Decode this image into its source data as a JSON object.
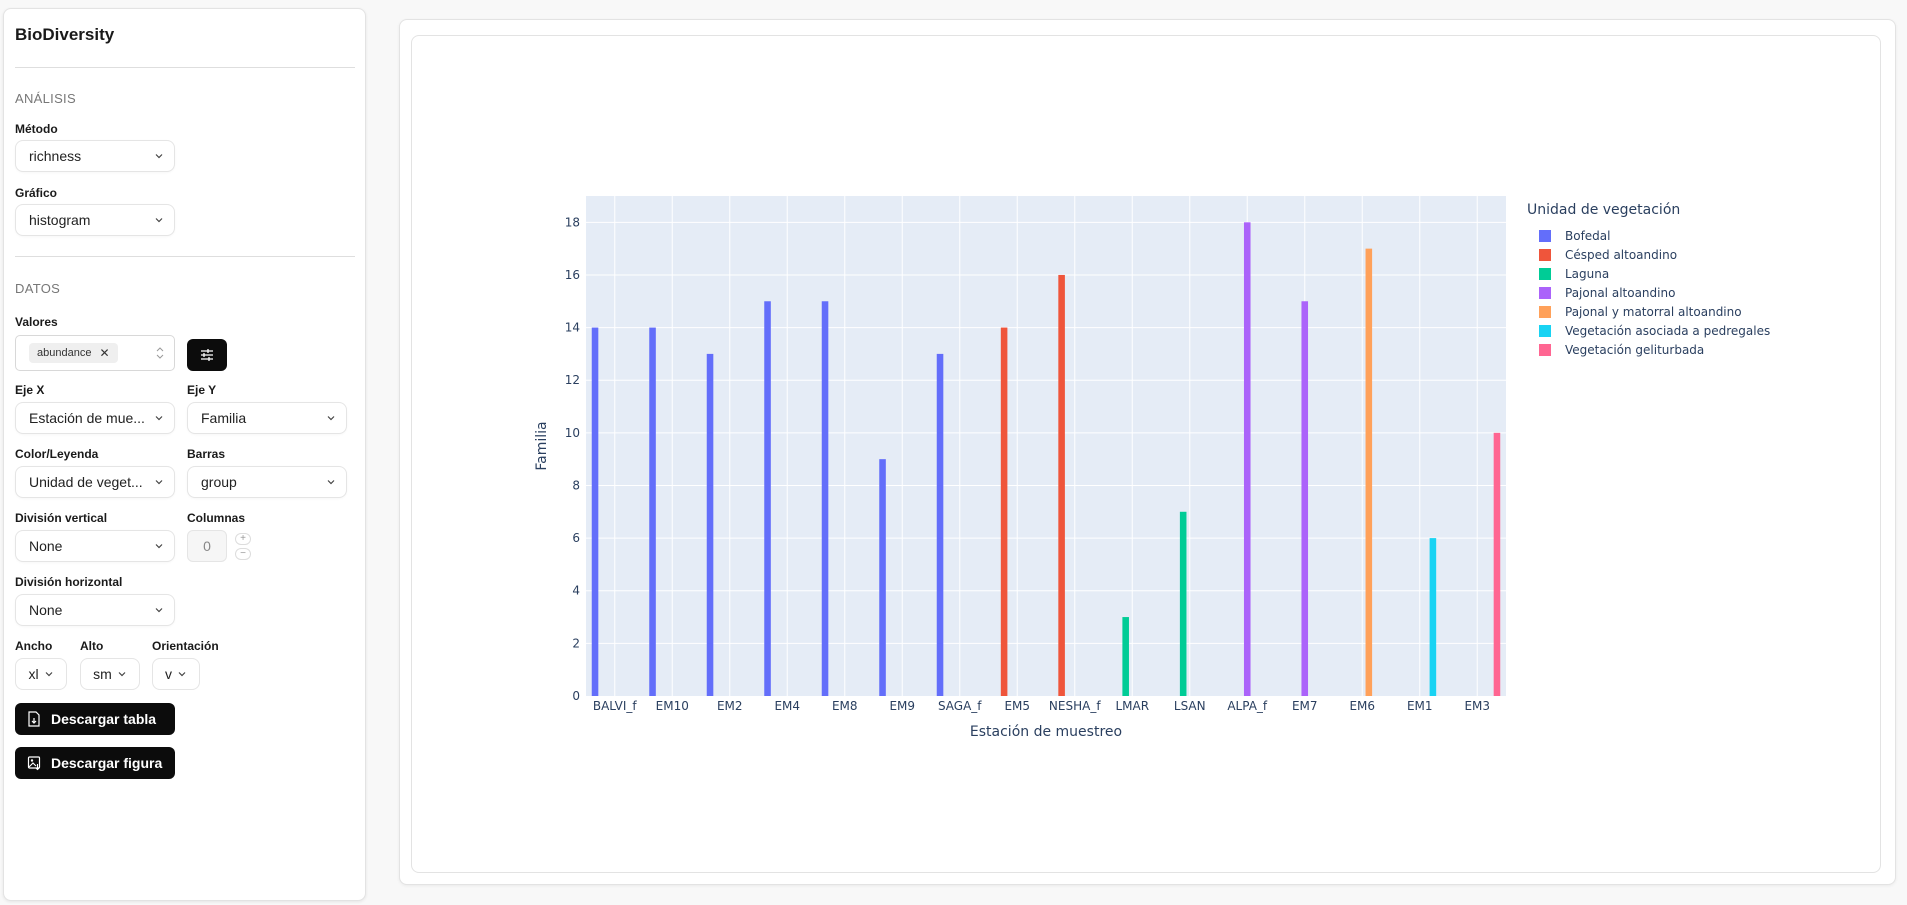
{
  "app": {
    "title": "BioDiversity"
  },
  "sidebar": {
    "analysis": {
      "section_title": "ANÁLISIS",
      "metodo": {
        "label": "Método",
        "value": "richness"
      },
      "grafico": {
        "label": "Gráfico",
        "value": "histogram"
      }
    },
    "datos": {
      "section_title": "DATOS",
      "valores": {
        "label": "Valores",
        "chips": [
          "abundance"
        ]
      },
      "eje_x": {
        "label": "Eje X",
        "value": "Estación de mue..."
      },
      "eje_y": {
        "label": "Eje Y",
        "value": "Familia"
      },
      "color_leyenda": {
        "label": "Color/Leyenda",
        "value": "Unidad de veget..."
      },
      "barras": {
        "label": "Barras",
        "value": "group"
      },
      "division_vertical": {
        "label": "División vertical",
        "value": "None"
      },
      "columnas": {
        "label": "Columnas",
        "value": "0",
        "plus": "+",
        "minus": "−"
      },
      "division_horizontal": {
        "label": "División horizontal",
        "value": "None"
      },
      "ancho": {
        "label": "Ancho",
        "value": "xl"
      },
      "alto": {
        "label": "Alto",
        "value": "sm"
      },
      "orientacion": {
        "label": "Orientación",
        "value": "v"
      }
    },
    "buttons": {
      "download_table": "Descargar tabla",
      "download_figure": "Descargar figura"
    }
  },
  "chart_data": {
    "type": "bar",
    "barmode": "group",
    "title": "",
    "xlabel": "Estación de muestreo",
    "ylabel": "Familia",
    "ylim": [
      0,
      19
    ],
    "yticks": [
      0,
      2,
      4,
      6,
      8,
      10,
      12,
      14,
      16,
      18
    ],
    "grid": true,
    "legend_title": "Unidad de vegetación",
    "legend_position": "right-top",
    "categories": [
      "BALVI_f",
      "EM10",
      "EM2",
      "EM4",
      "EM8",
      "EM9",
      "SAGA_f",
      "EM5",
      "NESHA_f",
      "LMAR",
      "LSAN",
      "ALPA_f",
      "EM7",
      "EM6",
      "EM1",
      "EM3"
    ],
    "series": [
      {
        "name": "Bofedal",
        "color": "#636efa",
        "points": [
          {
            "x": "BALVI_f",
            "y": 14
          },
          {
            "x": "EM10",
            "y": 14
          },
          {
            "x": "EM2",
            "y": 13
          },
          {
            "x": "EM4",
            "y": 15
          },
          {
            "x": "EM8",
            "y": 15
          },
          {
            "x": "EM9",
            "y": 9
          },
          {
            "x": "SAGA_f",
            "y": 13
          }
        ]
      },
      {
        "name": "Césped altoandino",
        "color": "#ef553b",
        "points": [
          {
            "x": "EM5",
            "y": 14
          },
          {
            "x": "NESHA_f",
            "y": 16
          }
        ]
      },
      {
        "name": "Laguna",
        "color": "#00cc96",
        "points": [
          {
            "x": "LMAR",
            "y": 3
          },
          {
            "x": "LSAN",
            "y": 7
          }
        ]
      },
      {
        "name": "Pajonal altoandino",
        "color": "#ab63fa",
        "points": [
          {
            "x": "ALPA_f",
            "y": 18
          },
          {
            "x": "EM7",
            "y": 15
          }
        ]
      },
      {
        "name": "Pajonal y matorral altoandino",
        "color": "#ffa15a",
        "points": [
          {
            "x": "EM6",
            "y": 17
          }
        ]
      },
      {
        "name": "Vegetación asociada a pedregales",
        "color": "#19d3f3",
        "points": [
          {
            "x": "EM1",
            "y": 6
          }
        ]
      },
      {
        "name": "Vegetación geliturbada",
        "color": "#ff6692",
        "points": [
          {
            "x": "EM3",
            "y": 10
          }
        ]
      }
    ]
  }
}
